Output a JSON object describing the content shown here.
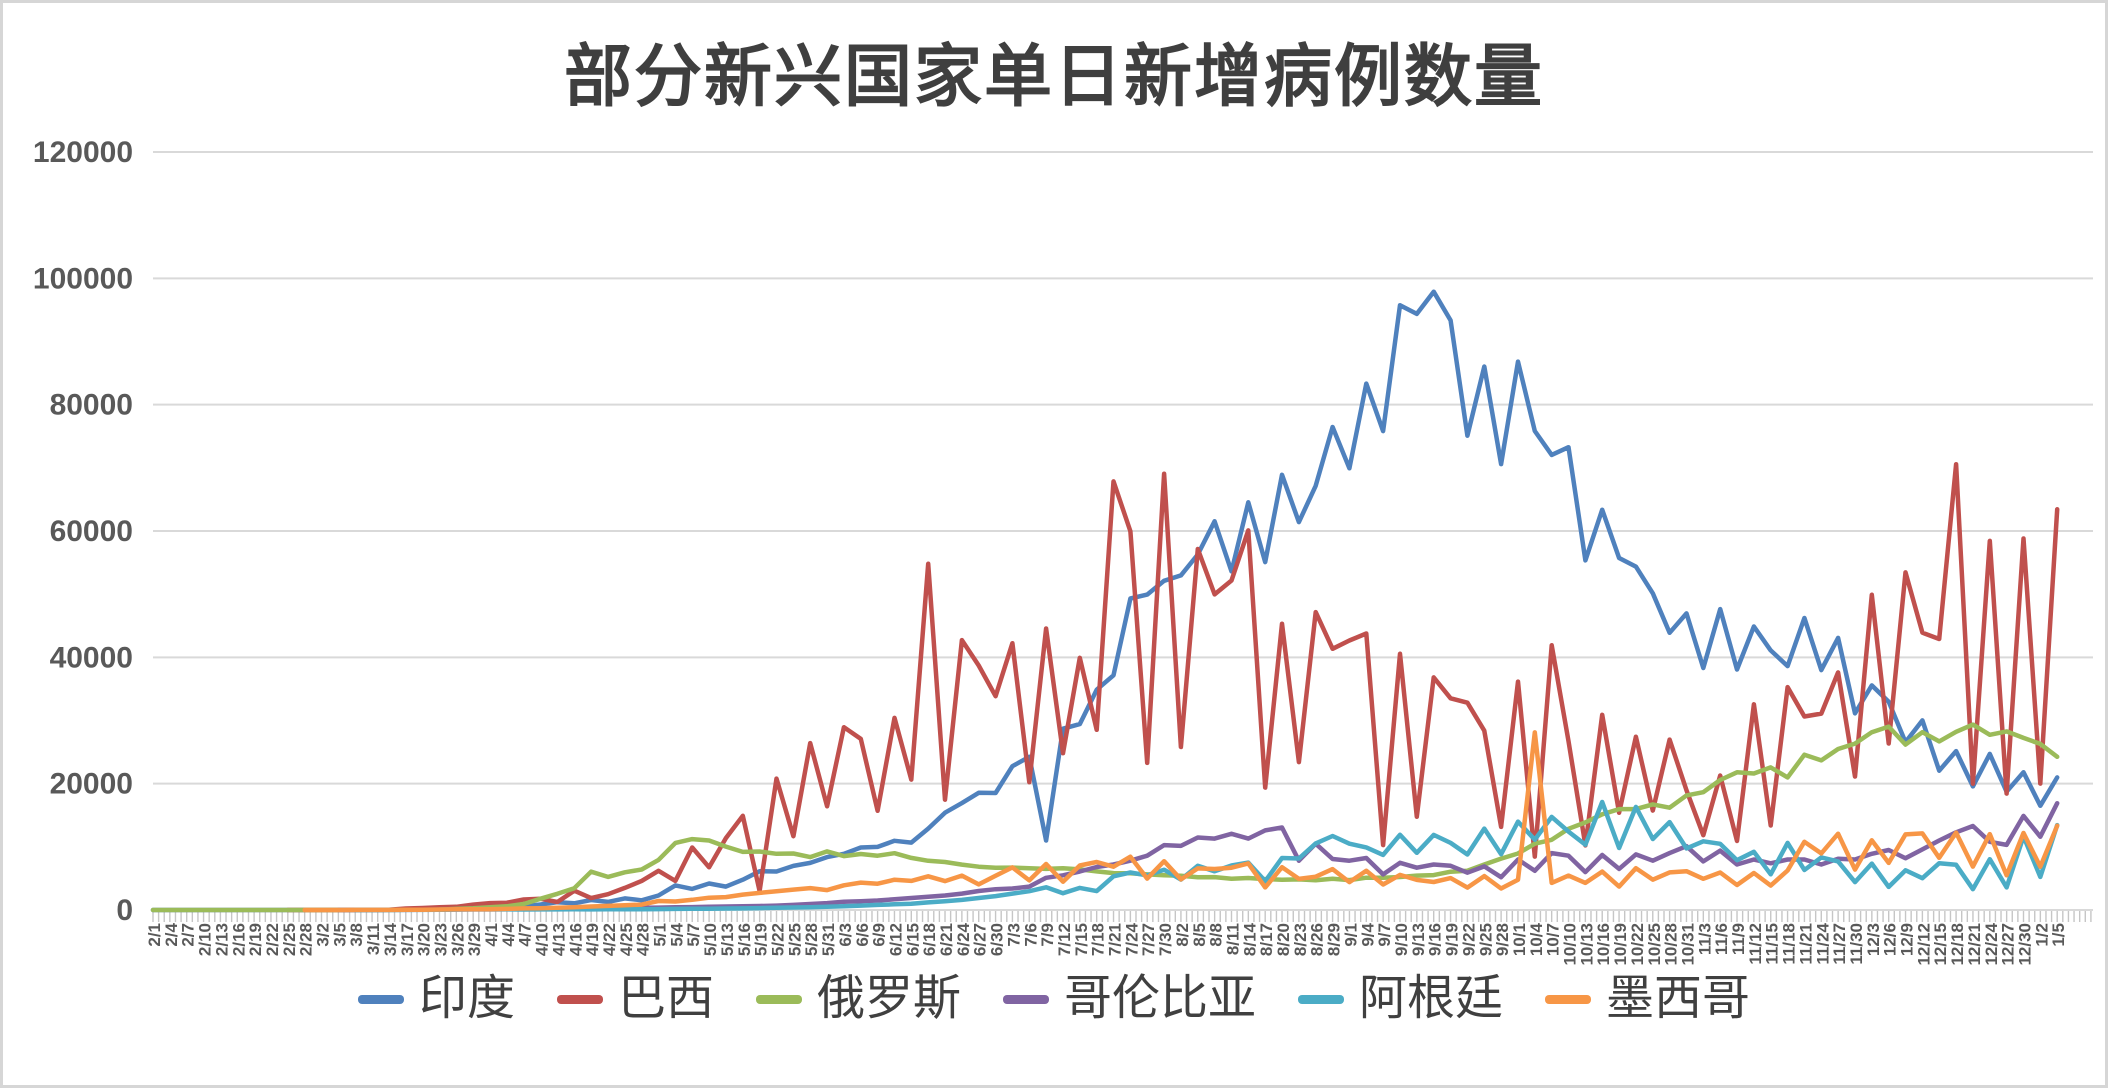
{
  "title": "部分新兴国家单日新增病例数量",
  "chart_data": {
    "type": "line",
    "title": "部分新兴国家单日新增病例数量",
    "xlabel": "",
    "ylabel": "",
    "ylim": [
      0,
      120000
    ],
    "y_ticks": [
      0,
      20000,
      40000,
      60000,
      80000,
      100000,
      120000
    ],
    "grid": true,
    "legend_position": "bottom",
    "x_tick_interval_days": 3,
    "categories": [
      "2/1",
      "2/4",
      "2/7",
      "2/10",
      "2/13",
      "2/16",
      "2/19",
      "2/22",
      "2/25",
      "2/28",
      "3/2",
      "3/5",
      "3/8",
      "3/11",
      "3/14",
      "3/17",
      "3/20",
      "3/23",
      "3/26",
      "3/29",
      "4/1",
      "4/4",
      "4/7",
      "4/10",
      "4/13",
      "4/16",
      "4/19",
      "4/22",
      "4/25",
      "4/28",
      "5/1",
      "5/4",
      "5/7",
      "5/10",
      "5/13",
      "5/16",
      "5/19",
      "5/22",
      "5/25",
      "5/28",
      "5/31",
      "6/3",
      "6/6",
      "6/9",
      "6/12",
      "6/15",
      "6/18",
      "6/21",
      "6/24",
      "6/27",
      "6/30",
      "7/3",
      "7/6",
      "7/9",
      "7/12",
      "7/15",
      "7/18",
      "7/21",
      "7/24",
      "7/27",
      "7/30",
      "8/2",
      "8/5",
      "8/8",
      "8/11",
      "8/14",
      "8/17",
      "8/20",
      "8/23",
      "8/26",
      "8/29",
      "9/1",
      "9/4",
      "9/7",
      "9/10",
      "9/13",
      "9/16",
      "9/19",
      "9/22",
      "9/25",
      "9/28",
      "10/1",
      "10/4",
      "10/7",
      "10/10",
      "10/13",
      "10/16",
      "10/19",
      "10/22",
      "10/25",
      "10/28",
      "10/31",
      "11/3",
      "11/6",
      "11/9",
      "11/12",
      "11/15",
      "11/18",
      "11/21",
      "11/24",
      "11/27",
      "11/30",
      "12/3",
      "12/6",
      "12/9",
      "12/12",
      "12/15",
      "12/18",
      "12/21",
      "12/24",
      "12/27",
      "12/30",
      "1/2",
      "1/5"
    ],
    "series": [
      {
        "name": "印度",
        "color": "#4F81BD",
        "values": [
          0,
          0,
          0,
          0,
          0,
          0,
          0,
          0,
          0,
          0,
          0,
          5,
          10,
          15,
          30,
          60,
          100,
          150,
          200,
          350,
          400,
          520,
          570,
          870,
          1240,
          1060,
          1580,
          1290,
          1835,
          1540,
          2290,
          3900,
          3340,
          4200,
          3700,
          4790,
          6150,
          6090,
          6980,
          7460,
          8380,
          8900,
          9890,
          9990,
          10960,
          10670,
          12880,
          15410,
          16920,
          18550,
          18520,
          22770,
          24250,
          11000,
          28700,
          29430,
          34880,
          37150,
          49310,
          49930,
          52120,
          52970,
          56280,
          61540,
          53600,
          64550,
          55080,
          68900,
          61410,
          67150,
          76470,
          69920,
          83340,
          75810,
          95740,
          94370,
          97890,
          93340,
          75080,
          86050,
          70590,
          86820,
          75830,
          72050,
          73270,
          55340,
          63370,
          55720,
          54370,
          50130,
          43890,
          46960,
          38310,
          47640,
          38070,
          44880,
          41100,
          38620,
          46230,
          37980,
          43080,
          31120,
          35550,
          32980,
          26570,
          30010,
          22060,
          25150,
          19560,
          24710,
          18730,
          21820,
          16500,
          21000
        ]
      },
      {
        "name": "巴西",
        "color": "#C0504D",
        "values": [
          null,
          null,
          null,
          null,
          null,
          null,
          null,
          null,
          0,
          0,
          0,
          0,
          10,
          30,
          50,
          230,
          310,
          420,
          500,
          850,
          1100,
          1150,
          1660,
          1780,
          1260,
          3060,
          1890,
          2500,
          3500,
          4600,
          6200,
          4600,
          9900,
          6760,
          11380,
          14920,
          3000,
          20800,
          11690,
          26420,
          16410,
          28940,
          27080,
          15700,
          30410,
          20650,
          54800,
          17460,
          42730,
          38700,
          33850,
          42230,
          20230,
          44570,
          24830,
          39920,
          28530,
          67860,
          59960,
          23280,
          69070,
          25800,
          57150,
          49970,
          52160,
          60090,
          19370,
          45320,
          23420,
          47160,
          41350,
          42660,
          43770,
          10270,
          40560,
          14770,
          36820,
          33520,
          32820,
          28380,
          13160,
          36160,
          8460,
          41910,
          26740,
          10220,
          30910,
          15380,
          27440,
          15730,
          26980,
          18950,
          11840,
          21300,
          10920,
          32570,
          13370,
          35290,
          30630,
          31100,
          37610,
          21140,
          49900,
          26360,
          53450,
          43900,
          42900,
          70570,
          20000,
          58430,
          18430,
          58820,
          20010,
          63430
        ]
      },
      {
        "name": "俄罗斯",
        "color": "#9BBB59",
        "values": [
          0,
          0,
          0,
          0,
          0,
          0,
          0,
          0,
          0,
          0,
          0,
          0,
          0,
          10,
          10,
          30,
          50,
          60,
          180,
          270,
          440,
          580,
          950,
          1790,
          2560,
          3450,
          6060,
          5240,
          5970,
          6410,
          7930,
          10630,
          11230,
          11010,
          10030,
          9200,
          9260,
          8890,
          8950,
          8370,
          9270,
          8540,
          8860,
          8600,
          8990,
          8250,
          7790,
          7600,
          7180,
          6850,
          6690,
          6720,
          6610,
          6510,
          6620,
          6420,
          6110,
          5840,
          5810,
          5640,
          5510,
          5430,
          5200,
          5210,
          4950,
          5070,
          4890,
          4790,
          4850,
          4710,
          4940,
          4730,
          5110,
          5100,
          5220,
          5450,
          5530,
          6070,
          6220,
          7210,
          8140,
          8950,
          10500,
          11120,
          12850,
          13870,
          15150,
          15980,
          15970,
          16710,
          16200,
          18140,
          18650,
          20580,
          21800,
          21610,
          22570,
          20990,
          24580,
          23680,
          25490,
          26340,
          28150,
          29040,
          26190,
          28140,
          26690,
          28210,
          29350,
          27740,
          28280,
          27250,
          26300,
          24250
        ]
      },
      {
        "name": "哥伦比亚",
        "color": "#8064A2",
        "values": [
          null,
          null,
          null,
          null,
          null,
          null,
          null,
          null,
          null,
          null,
          null,
          0,
          0,
          0,
          10,
          20,
          40,
          60,
          80,
          100,
          100,
          120,
          150,
          180,
          200,
          230,
          260,
          290,
          320,
          350,
          380,
          420,
          460,
          500,
          550,
          600,
          640,
          700,
          800,
          950,
          1100,
          1300,
          1400,
          1500,
          1700,
          1900,
          2100,
          2300,
          2600,
          3000,
          3300,
          3400,
          3700,
          5100,
          5500,
          6100,
          6800,
          7200,
          7800,
          8600,
          10280,
          10140,
          11470,
          11300,
          12070,
          11300,
          12600,
          13060,
          7800,
          10500,
          8070,
          7800,
          8230,
          5640,
          7470,
          6700,
          7200,
          7000,
          5900,
          6900,
          5200,
          8000,
          6200,
          9000,
          8600,
          6000,
          8700,
          6500,
          8800,
          7800,
          9000,
          10100,
          7700,
          9400,
          7200,
          8000,
          7400,
          8000,
          8000,
          7200,
          8100,
          8000,
          8900,
          9500,
          8200,
          9600,
          11000,
          12300,
          13300,
          10800,
          10300,
          14900,
          11600,
          16900
        ]
      },
      {
        "name": "阿根廷",
        "color": "#4BACC6",
        "values": [
          null,
          null,
          null,
          null,
          null,
          null,
          null,
          null,
          null,
          null,
          null,
          null,
          0,
          0,
          0,
          10,
          20,
          50,
          80,
          100,
          90,
          100,
          80,
          90,
          100,
          110,
          100,
          110,
          120,
          130,
          150,
          170,
          190,
          210,
          230,
          260,
          300,
          350,
          400,
          450,
          500,
          600,
          700,
          800,
          900,
          1000,
          1200,
          1400,
          1600,
          1900,
          2200,
          2590,
          2980,
          3600,
          2660,
          3500,
          2990,
          5340,
          5930,
          5470,
          6380,
          4820,
          7000,
          6130,
          7040,
          7500,
          4560,
          8230,
          8160,
          10550,
          11710,
          10500,
          9910,
          8720,
          11910,
          9050,
          11890,
          10620,
          8780,
          12880,
          8840,
          14000,
          11130,
          14740,
          12410,
          10330,
          17100,
          9810,
          16320,
          11240,
          13920,
          9750,
          10880,
          10480,
          7890,
          9210,
          5650,
          10630,
          6340,
          8320,
          7700,
          4420,
          7350,
          3650,
          6290,
          5030,
          7410,
          7150,
          3300,
          8040,
          3580,
          11650,
          5240,
          13440
        ]
      },
      {
        "name": "墨西哥",
        "color": "#F79646",
        "values": [
          null,
          null,
          null,
          null,
          null,
          null,
          null,
          null,
          null,
          0,
          0,
          0,
          10,
          10,
          20,
          30,
          50,
          80,
          110,
          130,
          120,
          180,
          260,
          290,
          350,
          450,
          550,
          650,
          760,
          850,
          1430,
          1350,
          1610,
          1940,
          2040,
          2440,
          2710,
          2960,
          3230,
          3460,
          3150,
          3910,
          4340,
          4170,
          4790,
          4600,
          5340,
          4580,
          5440,
          4050,
          5430,
          6740,
          4680,
          7280,
          4480,
          7050,
          7600,
          6860,
          8440,
          4970,
          7730,
          4850,
          6590,
          6490,
          6690,
          7370,
          3570,
          6780,
          4920,
          5270,
          6480,
          4410,
          6200,
          4040,
          5560,
          4770,
          4440,
          5050,
          3540,
          5370,
          3400,
          4775,
          28115,
          4295,
          5450,
          4295,
          6080,
          3700,
          6610,
          4790,
          5950,
          6150,
          4940,
          5930,
          3960,
          5850,
          3860,
          6250,
          10790,
          8960,
          12080,
          6390,
          11030,
          7455,
          11970,
          12130,
          8270,
          12250,
          6870,
          12010,
          5500,
          12190,
          6860,
          13340
        ]
      }
    ]
  },
  "style": {
    "grid_color": "#d9d9d9",
    "tick_color": "#c6c6c6",
    "axis_label_color": "#595959",
    "title_color": "#3f3f3f",
    "legend_text_color": "#404040"
  }
}
